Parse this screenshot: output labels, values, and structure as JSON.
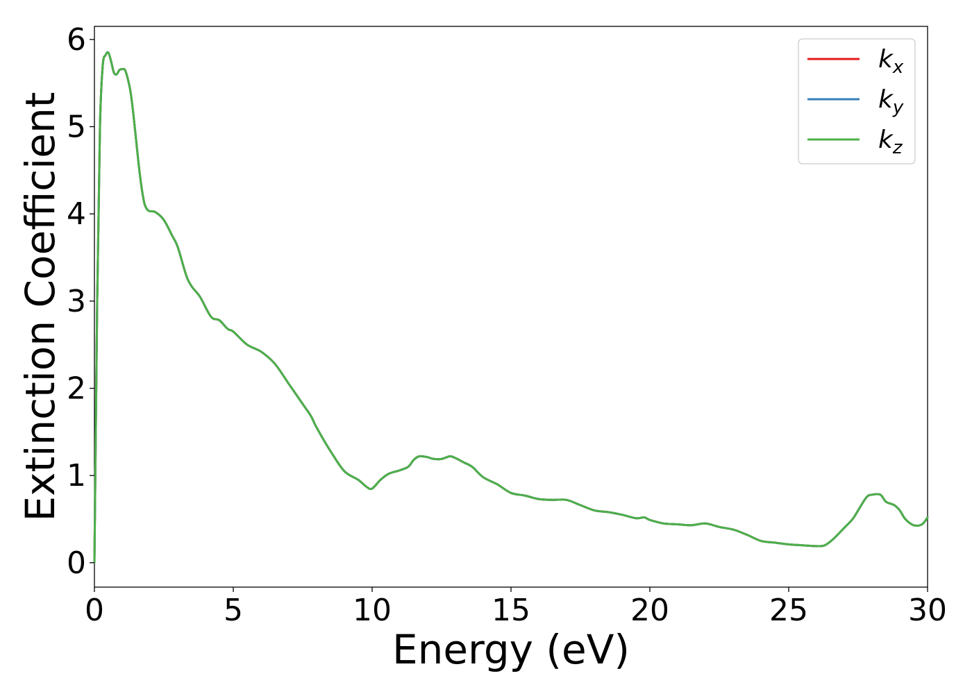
{
  "chart_data": {
    "type": "line",
    "xlabel": "Energy (eV)",
    "ylabel": "Extinction Coefficient",
    "xlim": [
      0,
      30
    ],
    "ylim": [
      -0.28,
      6.15
    ],
    "x_ticks": [
      0,
      5,
      10,
      15,
      20,
      25,
      30
    ],
    "y_ticks": [
      0,
      1,
      2,
      3,
      4,
      5,
      6
    ],
    "grid": false,
    "legend_position": "top-right",
    "colors": {
      "kx": "#e41a1c",
      "ky": "#377eb8",
      "kz": "#4daf4a"
    },
    "x": [
      0.0,
      0.1,
      0.2,
      0.3,
      0.4,
      0.5,
      0.6,
      0.7,
      0.8,
      0.9,
      1.0,
      1.1,
      1.2,
      1.3,
      1.4,
      1.5,
      1.6,
      1.7,
      1.8,
      1.9,
      2.0,
      2.2,
      2.5,
      2.8,
      3.0,
      3.3,
      3.5,
      3.8,
      4.2,
      4.5,
      4.8,
      5.0,
      5.5,
      6.0,
      6.5,
      7.0,
      7.5,
      7.8,
      8.0,
      8.5,
      9.0,
      9.5,
      9.8,
      10.0,
      10.3,
      10.6,
      11.0,
      11.3,
      11.5,
      11.7,
      12.0,
      12.2,
      12.5,
      12.8,
      13.0,
      13.3,
      13.6,
      14.0,
      14.5,
      15.0,
      15.5,
      16.0,
      16.5,
      17.0,
      17.5,
      18.0,
      18.5,
      19.0,
      19.5,
      19.8,
      20.0,
      20.5,
      21.0,
      21.5,
      22.0,
      22.5,
      23.0,
      23.5,
      24.0,
      24.5,
      25.0,
      25.5,
      26.0,
      26.3,
      26.6,
      27.0,
      27.3,
      27.5,
      27.8,
      28.0,
      28.3,
      28.5,
      28.8,
      29.0,
      29.2,
      29.5,
      29.8,
      30.0
    ],
    "series": [
      {
        "name": "k_x",
        "values": [
          0.0,
          3.0,
          5.0,
          5.7,
          5.82,
          5.85,
          5.75,
          5.62,
          5.6,
          5.65,
          5.66,
          5.65,
          5.55,
          5.4,
          5.15,
          4.85,
          4.55,
          4.3,
          4.12,
          4.05,
          4.03,
          4.02,
          3.93,
          3.75,
          3.62,
          3.3,
          3.17,
          3.05,
          2.82,
          2.78,
          2.68,
          2.65,
          2.5,
          2.42,
          2.28,
          2.05,
          1.82,
          1.68,
          1.55,
          1.28,
          1.05,
          0.95,
          0.87,
          0.85,
          0.95,
          1.02,
          1.06,
          1.1,
          1.18,
          1.22,
          1.21,
          1.19,
          1.19,
          1.22,
          1.2,
          1.15,
          1.1,
          0.98,
          0.9,
          0.8,
          0.77,
          0.73,
          0.72,
          0.72,
          0.66,
          0.6,
          0.58,
          0.55,
          0.51,
          0.52,
          0.49,
          0.45,
          0.44,
          0.43,
          0.45,
          0.41,
          0.38,
          0.32,
          0.25,
          0.23,
          0.21,
          0.2,
          0.19,
          0.2,
          0.27,
          0.4,
          0.5,
          0.6,
          0.75,
          0.78,
          0.78,
          0.7,
          0.66,
          0.6,
          0.5,
          0.43,
          0.44,
          0.52
        ]
      },
      {
        "name": "k_y",
        "values": [
          0.0,
          3.0,
          5.0,
          5.7,
          5.82,
          5.85,
          5.75,
          5.62,
          5.6,
          5.65,
          5.66,
          5.65,
          5.55,
          5.4,
          5.15,
          4.85,
          4.55,
          4.3,
          4.12,
          4.05,
          4.03,
          4.02,
          3.93,
          3.75,
          3.62,
          3.3,
          3.17,
          3.05,
          2.82,
          2.78,
          2.68,
          2.65,
          2.5,
          2.42,
          2.28,
          2.05,
          1.82,
          1.68,
          1.55,
          1.28,
          1.05,
          0.95,
          0.87,
          0.85,
          0.95,
          1.02,
          1.06,
          1.1,
          1.18,
          1.22,
          1.21,
          1.19,
          1.19,
          1.22,
          1.2,
          1.15,
          1.1,
          0.98,
          0.9,
          0.8,
          0.77,
          0.73,
          0.72,
          0.72,
          0.66,
          0.6,
          0.58,
          0.55,
          0.51,
          0.52,
          0.49,
          0.45,
          0.44,
          0.43,
          0.45,
          0.41,
          0.38,
          0.32,
          0.25,
          0.23,
          0.21,
          0.2,
          0.19,
          0.2,
          0.27,
          0.4,
          0.5,
          0.6,
          0.75,
          0.78,
          0.78,
          0.7,
          0.66,
          0.6,
          0.5,
          0.43,
          0.44,
          0.52
        ]
      },
      {
        "name": "k_z",
        "values": [
          0.0,
          3.0,
          5.0,
          5.7,
          5.82,
          5.85,
          5.75,
          5.62,
          5.6,
          5.65,
          5.66,
          5.65,
          5.55,
          5.4,
          5.15,
          4.85,
          4.55,
          4.3,
          4.12,
          4.05,
          4.03,
          4.02,
          3.93,
          3.75,
          3.62,
          3.3,
          3.17,
          3.05,
          2.82,
          2.78,
          2.68,
          2.65,
          2.5,
          2.42,
          2.28,
          2.05,
          1.82,
          1.68,
          1.55,
          1.28,
          1.05,
          0.95,
          0.87,
          0.85,
          0.95,
          1.02,
          1.06,
          1.1,
          1.18,
          1.22,
          1.21,
          1.19,
          1.19,
          1.22,
          1.2,
          1.15,
          1.1,
          0.98,
          0.9,
          0.8,
          0.77,
          0.73,
          0.72,
          0.72,
          0.66,
          0.6,
          0.58,
          0.55,
          0.51,
          0.52,
          0.49,
          0.45,
          0.44,
          0.43,
          0.45,
          0.41,
          0.38,
          0.32,
          0.25,
          0.23,
          0.21,
          0.2,
          0.19,
          0.2,
          0.27,
          0.4,
          0.5,
          0.6,
          0.75,
          0.78,
          0.78,
          0.7,
          0.66,
          0.6,
          0.5,
          0.43,
          0.44,
          0.52
        ]
      }
    ],
    "legend": [
      {
        "symbol": "k",
        "sub": "x",
        "color_key": "kx"
      },
      {
        "symbol": "k",
        "sub": "y",
        "color_key": "ky"
      },
      {
        "symbol": "k",
        "sub": "z",
        "color_key": "kz"
      }
    ]
  }
}
